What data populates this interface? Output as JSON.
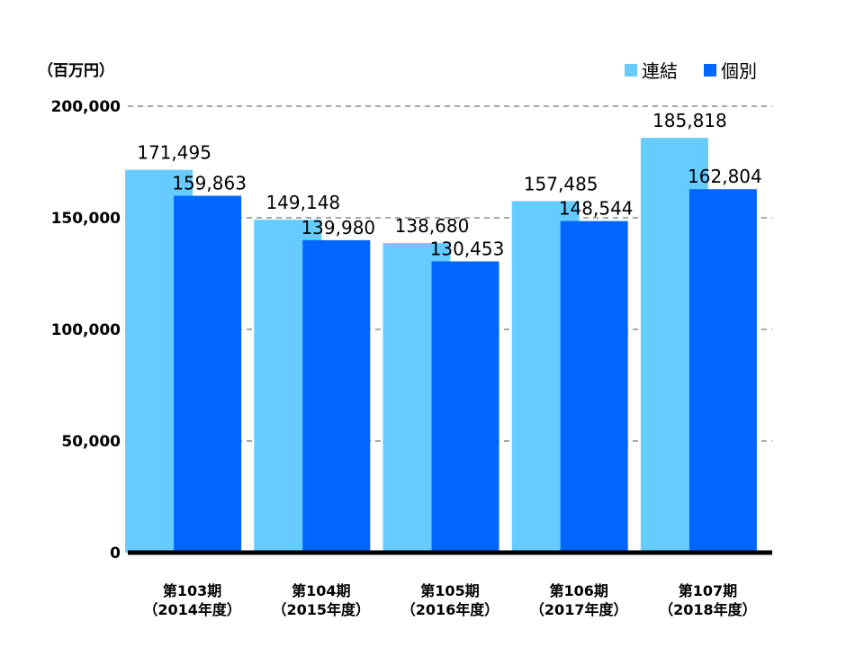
{
  "chart_data": {
    "type": "bar",
    "unit_label": "（百万円）",
    "categories": [
      {
        "line1": "第103期",
        "line2": "（2014年度）"
      },
      {
        "line1": "第104期",
        "line2": "（2015年度）"
      },
      {
        "line1": "第105期",
        "line2": "（2016年度）"
      },
      {
        "line1": "第106期",
        "line2": "（2017年度）"
      },
      {
        "line1": "第107期",
        "line2": "（2018年度）"
      }
    ],
    "series": [
      {
        "name": "連結",
        "color": "#66ccff",
        "values": [
          171495,
          149148,
          138680,
          157485,
          185818
        ],
        "labels": [
          "171,495",
          "149,148",
          "138,680",
          "157,485",
          "185,818"
        ]
      },
      {
        "name": "個別",
        "color": "#0066ff",
        "values": [
          159863,
          139980,
          130453,
          148544,
          162804
        ],
        "labels": [
          "159,863",
          "139,980",
          "130,453",
          "148,544",
          "162,804"
        ]
      }
    ],
    "ylim": [
      0,
      200000
    ],
    "yticks": [
      0,
      50000,
      100000,
      150000,
      200000
    ],
    "ytick_labels": [
      "0",
      "50,000",
      "100,000",
      "150,000",
      "200,000"
    ],
    "grid": "dashed horizontal",
    "legend_position": "top-right"
  }
}
